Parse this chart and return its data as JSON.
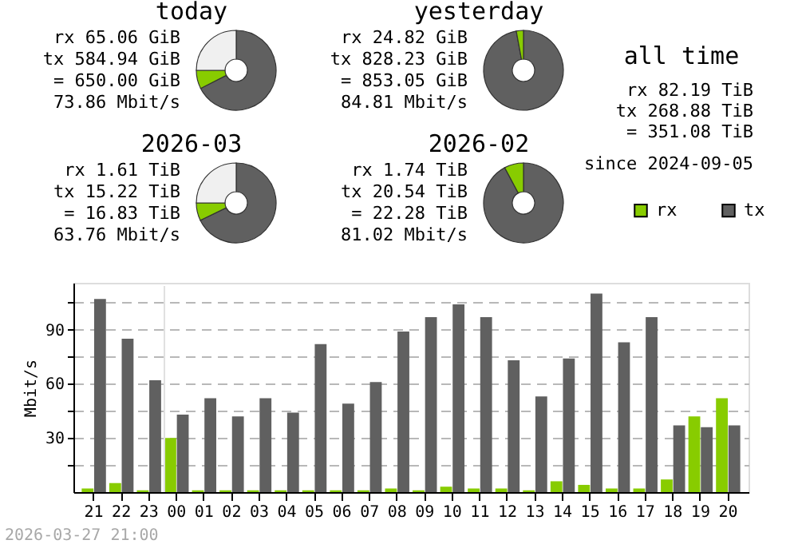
{
  "chart_data": [
    {
      "type": "donut",
      "title": "today",
      "categories": [
        null,
        null,
        null
      ],
      "values": [
        67.5,
        7.5,
        25
      ],
      "colors": [
        "#606060",
        "#88cc00",
        "#f0f0f0"
      ],
      "annotations": [
        "rx 65.06 GiB",
        "tx 584.94 GiB",
        "= 650.00 GiB",
        "73.86 Mbit/s"
      ]
    },
    {
      "type": "donut",
      "title": "yesterday",
      "categories": [
        null,
        null
      ],
      "values": [
        97.1,
        2.9
      ],
      "colors": [
        "#606060",
        "#88cc00"
      ],
      "annotations": [
        "rx 24.82 GiB",
        "tx 828.23 GiB",
        "= 853.05 GiB",
        "84.81 Mbit/s"
      ]
    },
    {
      "type": "other",
      "title": "all time",
      "annotations": [
        "rx 82.19 TiB",
        "tx 268.88 TiB",
        "= 351.08 TiB",
        "since 2024-09-05"
      ]
    },
    {
      "type": "donut",
      "title": "2026-03",
      "categories": [
        null,
        null,
        null
      ],
      "values": [
        67.8,
        7.2,
        25
      ],
      "colors": [
        "#606060",
        "#88cc00",
        "#f0f0f0"
      ],
      "annotations": [
        "rx 1.61 TiB",
        "tx 15.22 TiB",
        "= 16.83 TiB",
        "63.76 Mbit/s"
      ]
    },
    {
      "type": "donut",
      "title": "2026-02",
      "categories": [
        null,
        null
      ],
      "values": [
        92.2,
        7.8
      ],
      "colors": [
        "#606060",
        "#88cc00"
      ],
      "annotations": [
        "rx 1.74 TiB",
        "tx 20.54 TiB",
        "= 22.28 TiB",
        "81.02 Mbit/s"
      ]
    },
    {
      "type": "bar",
      "ylabel": "Mbit/s",
      "categories": [
        "21",
        "22",
        "23",
        "00",
        "01",
        "02",
        "03",
        "04",
        "05",
        "06",
        "07",
        "08",
        "09",
        "10",
        "11",
        "12",
        "13",
        "14",
        "15",
        "16",
        "17",
        "18",
        "19",
        "20"
      ],
      "series": [
        {
          "name": "rx",
          "color": "#88cc00",
          "values": [
            2,
            5,
            1,
            30,
            1,
            1,
            1,
            1,
            1,
            1,
            1,
            2,
            1,
            3,
            2,
            2,
            1,
            6,
            4,
            2,
            2,
            7,
            42,
            52
          ]
        },
        {
          "name": "tx",
          "color": "#606060",
          "values": [
            107,
            85,
            62,
            43,
            52,
            42,
            52,
            44,
            82,
            49,
            61,
            89,
            97,
            104,
            97,
            73,
            53,
            74,
            110,
            83,
            97,
            37,
            36,
            37
          ]
        }
      ],
      "ylim": [
        0,
        116
      ],
      "yticks": [
        {
          "value": 15,
          "label": null
        },
        30,
        {
          "value": 45,
          "label": null
        },
        60,
        {
          "value": 75,
          "label": null
        },
        90,
        {
          "value": 105,
          "label": null
        }
      ],
      "grid": "y",
      "legend": "top right",
      "ref_lines": [
        {
          "axis": "x",
          "value": "00",
          "color": "#e0e0e0"
        }
      ],
      "annotations": [
        "2026-03-27 21:00"
      ]
    }
  ]
}
